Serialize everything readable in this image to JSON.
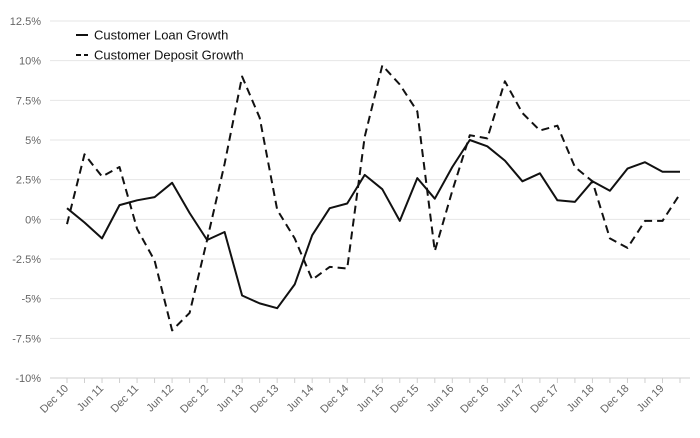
{
  "chart_data": {
    "type": "line",
    "title": "",
    "xlabel": "",
    "ylabel": "",
    "y_unit": "%",
    "ylim": [
      -10,
      12.5
    ],
    "yticks": [
      -10,
      -7.5,
      -5,
      -2.5,
      0,
      2.5,
      5,
      7.5,
      10,
      12.5
    ],
    "ytick_labels": [
      "-10%",
      "-7.5%",
      "-5%",
      "-2.5%",
      "0%",
      "2.5%",
      "5%",
      "7.5%",
      "10%",
      "12.5%"
    ],
    "grid": true,
    "legend_position": "top-left",
    "x": [
      "Dec 10",
      "Mar 11",
      "Jun 11",
      "Sep 11",
      "Dec 11",
      "Mar 12",
      "Jun 12",
      "Sep 12",
      "Dec 12",
      "Mar 13",
      "Jun 13",
      "Sep 13",
      "Dec 13",
      "Mar 14",
      "Jun 14",
      "Sep 14",
      "Dec 14",
      "Mar 15",
      "Jun 15",
      "Sep 15",
      "Dec 15",
      "Mar 16",
      "Jun 16",
      "Sep 16",
      "Dec 16",
      "Mar 17",
      "Jun 17",
      "Sep 17",
      "Dec 17",
      "Mar 18",
      "Jun 18",
      "Sep 18",
      "Dec 18",
      "Mar 19",
      "Jun 19",
      "Sep 19"
    ],
    "xtick_labels": [
      "Dec 10",
      "Jun 11",
      "Dec 11",
      "Jun 12",
      "Dec 12",
      "Jun 13",
      "Dec 13",
      "Jun 14",
      "Dec 14",
      "Jun 15",
      "Dec 15",
      "Jun 16",
      "Dec 16",
      "Jun 17",
      "Dec 17",
      "Jun 18",
      "Dec 18",
      "Jun 19"
    ],
    "series": [
      {
        "name": "Customer Loan Growth",
        "dash": "solid",
        "color": "#111111",
        "values": [
          0.7,
          -0.2,
          -1.2,
          0.9,
          1.2,
          1.4,
          2.3,
          0.4,
          -1.3,
          -0.8,
          -4.8,
          -5.3,
          -5.6,
          -4.1,
          -1.0,
          0.7,
          1.0,
          2.8,
          1.9,
          -0.1,
          2.6,
          1.3,
          3.3,
          5.0,
          4.6,
          3.7,
          2.4,
          2.9,
          1.2,
          1.1,
          2.4,
          1.8,
          3.2,
          3.6,
          3.0,
          3.0
        ]
      },
      {
        "name": "Customer Deposit Growth",
        "dash": "dashed",
        "color": "#111111",
        "values": [
          -0.3,
          4.1,
          2.7,
          3.3,
          -0.6,
          -2.6,
          -7.0,
          -5.9,
          -1.3,
          3.5,
          9.0,
          6.4,
          0.6,
          -1.2,
          -3.8,
          -3.0,
          -3.1,
          5.2,
          9.7,
          8.5,
          6.8,
          -2.0,
          1.8,
          5.3,
          5.1,
          8.7,
          6.7,
          5.6,
          5.9,
          3.3,
          2.4,
          -1.2,
          -1.8,
          -0.1,
          -0.1,
          1.6
        ]
      }
    ]
  }
}
